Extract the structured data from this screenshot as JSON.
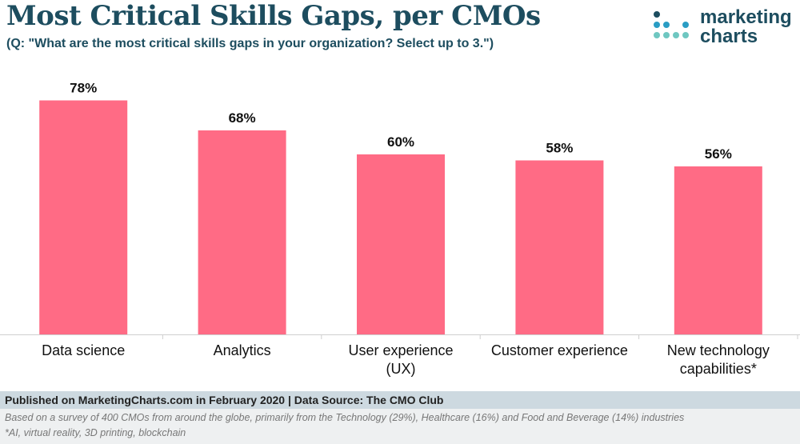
{
  "header": {
    "title": "Most Critical Skills Gaps, per CMOs",
    "subtitle": "(Q: \"What are the most critical skills gaps in your organization? Select up to 3.\")"
  },
  "logo": {
    "line1": "marketing",
    "line2": "charts"
  },
  "colors": {
    "bar": "#ff6b85",
    "title": "#1d4d5f",
    "logo_dots": [
      "#1d4d5f",
      "#2a9dc4",
      "#6fc7c1"
    ]
  },
  "chart_data": {
    "type": "bar",
    "title": "Most Critical Skills Gaps, per CMOs",
    "categories": [
      [
        "Data science"
      ],
      [
        "Analytics"
      ],
      [
        "User experience",
        "(UX)"
      ],
      [
        "Customer experience"
      ],
      [
        "New technology",
        "capabilities*"
      ]
    ],
    "values": [
      78,
      68,
      60,
      58,
      56
    ],
    "data_labels": [
      "78%",
      "68%",
      "60%",
      "58%",
      "56%"
    ],
    "ylim": [
      0,
      100
    ],
    "xlabel": "",
    "ylabel": "",
    "grid": false
  },
  "footer": {
    "published": "Published on MarketingCharts.com in February 2020 | Data Source: The CMO Club",
    "note1": "Based on a survey of 400 CMOs from around the globe, primarily from the Technology (29%), Healthcare (16%) and Food and Beverage (14%) industries",
    "note2": "*AI, virtual reality, 3D printing, blockchain"
  }
}
